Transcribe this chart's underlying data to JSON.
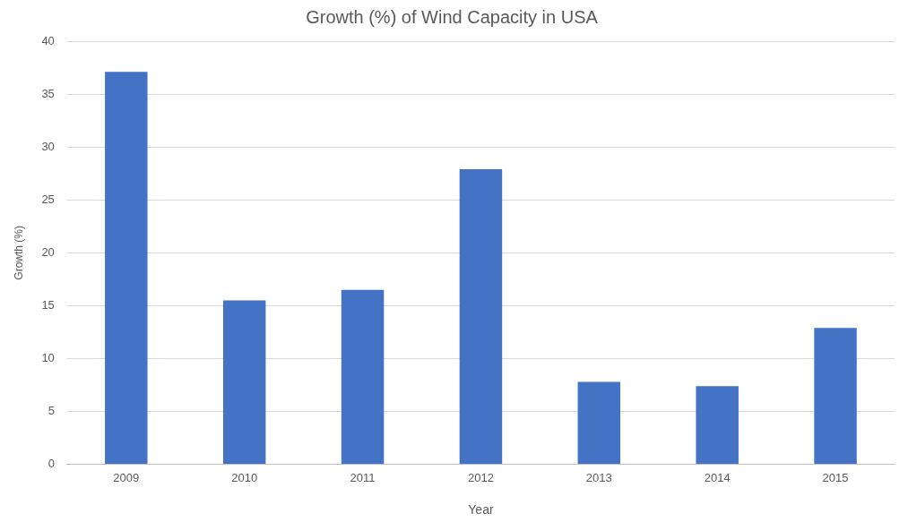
{
  "chart_data": {
    "type": "bar",
    "title": "Growth (%) of Wind Capacity in USA",
    "xlabel": "Year",
    "ylabel": "Growth (%)",
    "categories": [
      "2009",
      "2010",
      "2011",
      "2012",
      "2013",
      "2014",
      "2015"
    ],
    "values": [
      37.1,
      15.5,
      16.5,
      27.9,
      7.8,
      7.4,
      12.9
    ],
    "color": "#4472c4",
    "ylim": [
      0,
      40
    ],
    "yticks": [
      0,
      5,
      10,
      15,
      20,
      25,
      30,
      35,
      40
    ],
    "grid": "y",
    "legend": false
  }
}
